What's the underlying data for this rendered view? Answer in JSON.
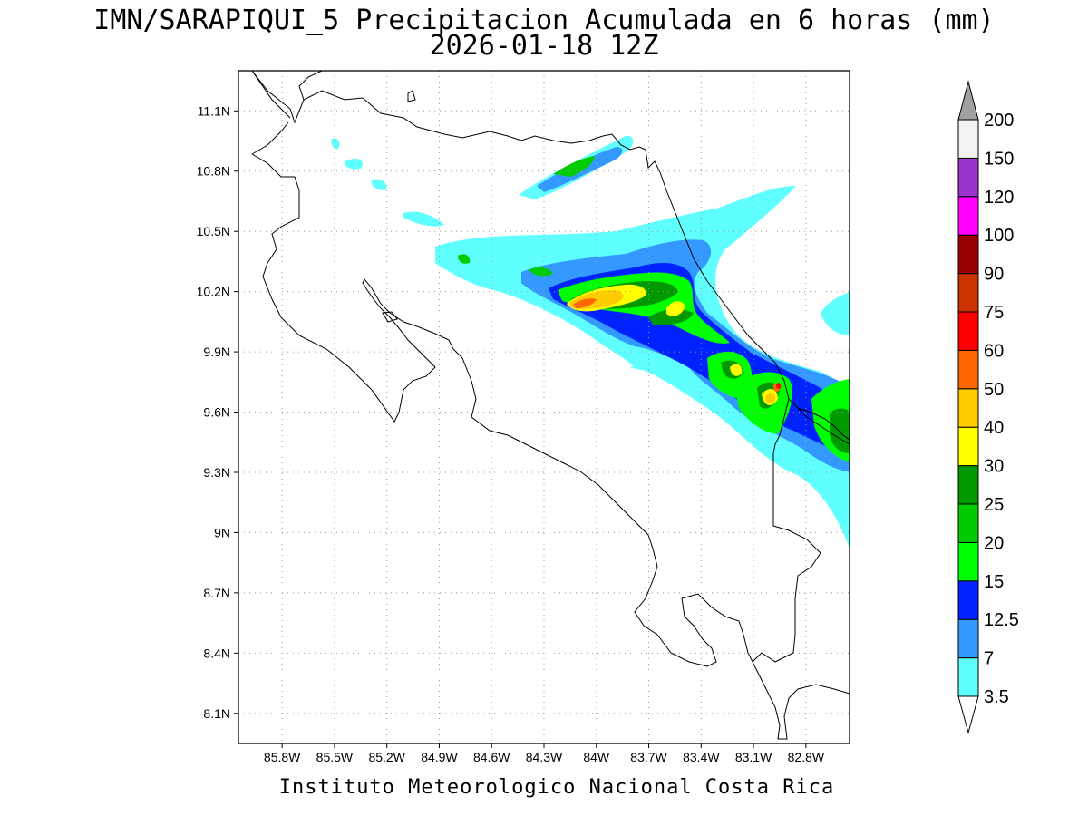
{
  "title": {
    "line1": "IMN/SARAPIQUI_5 Precipitacion Acumulada en 6 horas (mm)",
    "line2": "2026-01-18 12Z"
  },
  "footer": "Instituto Meteorologico Nacional Costa Rica",
  "map": {
    "lon_range": [
      -86.05,
      -82.55
    ],
    "lat_range": [
      7.95,
      11.3
    ],
    "y_ticks": [
      {
        "lat": 11.1,
        "label": "11.1N"
      },
      {
        "lat": 10.8,
        "label": "10.8N"
      },
      {
        "lat": 10.5,
        "label": "10.5N"
      },
      {
        "lat": 10.2,
        "label": "10.2N"
      },
      {
        "lat": 9.9,
        "label": "9.9N"
      },
      {
        "lat": 9.6,
        "label": "9.6N"
      },
      {
        "lat": 9.3,
        "label": "9.3N"
      },
      {
        "lat": 9.0,
        "label": "9N"
      },
      {
        "lat": 8.7,
        "label": "8.7N"
      },
      {
        "lat": 8.4,
        "label": "8.4N"
      },
      {
        "lat": 8.1,
        "label": "8.1N"
      }
    ],
    "x_ticks": [
      {
        "lon": -85.8,
        "label": "85.8W"
      },
      {
        "lon": -85.5,
        "label": "85.5W"
      },
      {
        "lon": -85.2,
        "label": "85.2W"
      },
      {
        "lon": -84.9,
        "label": "84.9W"
      },
      {
        "lon": -84.6,
        "label": "84.6W"
      },
      {
        "lon": -84.3,
        "label": "84.3W"
      },
      {
        "lon": -84.0,
        "label": "84W"
      },
      {
        "lon": -83.7,
        "label": "83.7W"
      },
      {
        "lon": -83.4,
        "label": "83.4W"
      },
      {
        "lon": -83.1,
        "label": "83.1W"
      },
      {
        "lon": -82.8,
        "label": "82.8W"
      }
    ],
    "grid": "dotted"
  },
  "colorbar": {
    "labels": [
      "3.5",
      "7",
      "12.5",
      "15",
      "20",
      "25",
      "30",
      "40",
      "50",
      "60",
      "75",
      "90",
      "100",
      "120",
      "150",
      "200"
    ],
    "colors": [
      "#60ffff",
      "#3399ff",
      "#0022ff",
      "#00ff00",
      "#00cc00",
      "#009900",
      "#ffff00",
      "#ffcc00",
      "#ff6600",
      "#ff0000",
      "#cc3300",
      "#990000",
      "#ff00ff",
      "#9933cc",
      "#f2f2f2"
    ],
    "low_end_color": "#ffffff",
    "high_end_color": "#a0a0a0"
  },
  "precip_blobs": [
    {
      "lon": -84.15,
      "lat": 10.2,
      "rx": 0.38,
      "ry": 0.11,
      "rot": -18,
      "level": 4
    },
    {
      "lon": -84.05,
      "lat": 10.22,
      "rx": 0.3,
      "ry": 0.07,
      "rot": -18,
      "level": 7
    },
    {
      "lon": -84.1,
      "lat": 10.21,
      "rx": 0.12,
      "ry": 0.04,
      "rot": -18,
      "level": 8
    },
    {
      "lon": -83.6,
      "lat": 10.1,
      "rx": 0.25,
      "ry": 0.22,
      "rot": -30,
      "level": 4
    },
    {
      "lon": -83.55,
      "lat": 10.15,
      "rx": 0.08,
      "ry": 0.06,
      "rot": -30,
      "level": 7
    },
    {
      "lon": -83.05,
      "lat": 9.85,
      "rx": 0.08,
      "ry": 0.1,
      "rot": -40,
      "level": 4
    },
    {
      "lon": -82.88,
      "lat": 9.75,
      "rx": 0.1,
      "ry": 0.12,
      "rot": -30,
      "level": 5
    },
    {
      "lon": -82.87,
      "lat": 9.75,
      "rx": 0.05,
      "ry": 0.07,
      "rot": -30,
      "level": 8
    },
    {
      "lon": -82.62,
      "lat": 9.55,
      "rx": 0.1,
      "ry": 0.15,
      "rot": -20,
      "level": 4
    },
    {
      "lon": -84.15,
      "lat": 10.85,
      "rx": 0.12,
      "ry": 0.04,
      "rot": -25,
      "level": 4
    }
  ]
}
